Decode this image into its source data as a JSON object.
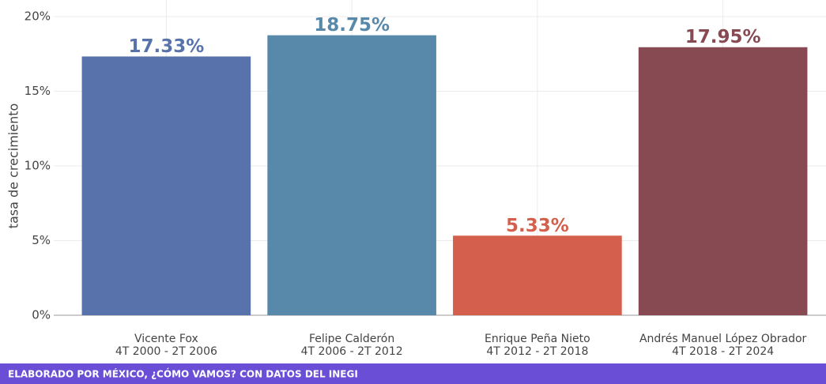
{
  "chart_data": {
    "type": "bar",
    "y_label": "tasa de crecimiento",
    "categories": [
      "Vicente Fox",
      "Felipe Calderón",
      "Enrique Peña Nieto",
      "Andrés Manuel López Obrador"
    ],
    "periods": [
      "4T 2000 - 2T 2006",
      "4T 2006 - 2T 2012",
      "4T 2012 - 2T 2018",
      "4T 2018 - 2T 2024"
    ],
    "values": [
      17.33,
      18.75,
      5.33,
      17.95
    ],
    "value_labels": [
      "17.33%",
      "18.75%",
      "5.33%",
      "17.95%"
    ],
    "colors": [
      "#5873ab",
      "#5889ab",
      "#d45f4c",
      "#874a52"
    ],
    "ylim": [
      0,
      20
    ],
    "yticks": [
      {
        "value": 0,
        "label": "0%"
      },
      {
        "value": 5,
        "label": "5%"
      },
      {
        "value": 10,
        "label": "10%"
      },
      {
        "value": 15,
        "label": "15%"
      },
      {
        "value": 20,
        "label": "20%"
      }
    ],
    "grid": true,
    "footer": "ELABORADO POR MÉXICO, ¿CÓMO VAMOS? CON DATOS DEL INEGI"
  }
}
